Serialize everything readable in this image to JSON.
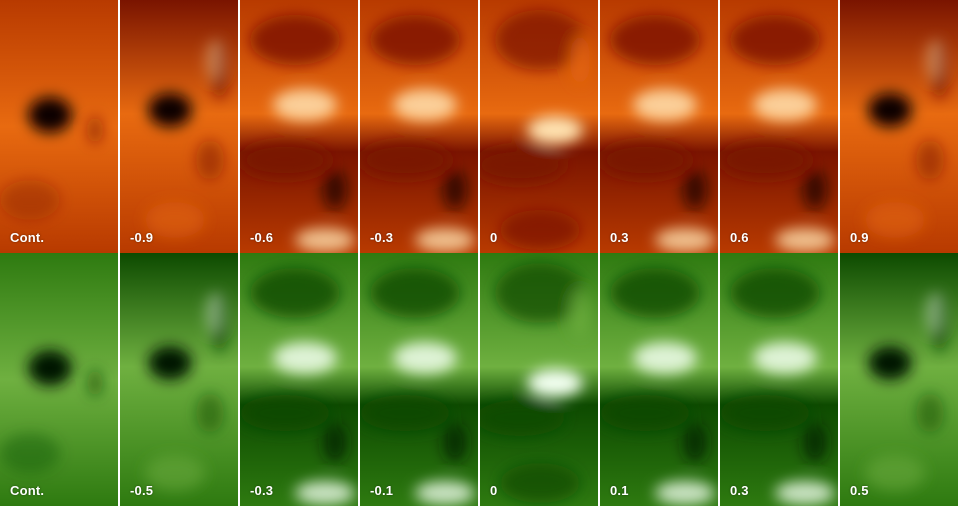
{
  "figure": {
    "rows": [
      {
        "id": "top",
        "palette": "red",
        "colors": {
          "dark": "#0c0200",
          "mid_low": "#7a1400",
          "mid": "#b83a00",
          "mid_high": "#e86a10",
          "bright": "#ffe2b0"
        },
        "panels": [
          {
            "label": "Cont.",
            "type": "continuum"
          },
          {
            "label": "-0.9",
            "type": "spot"
          },
          {
            "label": "-0.6",
            "type": "band"
          },
          {
            "label": "-0.3",
            "type": "band"
          },
          {
            "label": "0",
            "type": "core"
          },
          {
            "label": "0.3",
            "type": "band"
          },
          {
            "label": "0.6",
            "type": "band"
          },
          {
            "label": "0.9",
            "type": "spot"
          }
        ]
      },
      {
        "id": "bottom",
        "palette": "green",
        "colors": {
          "dark": "#001800",
          "mid_low": "#0d4a00",
          "mid": "#2e7a10",
          "mid_high": "#6fb040",
          "bright": "#f2fff0"
        },
        "panels": [
          {
            "label": "Cont.",
            "type": "continuum"
          },
          {
            "label": "-0.5",
            "type": "spot"
          },
          {
            "label": "-0.3",
            "type": "band"
          },
          {
            "label": "-0.1",
            "type": "band"
          },
          {
            "label": "0",
            "type": "core"
          },
          {
            "label": "0.1",
            "type": "band"
          },
          {
            "label": "0.3",
            "type": "band"
          },
          {
            "label": "0.5",
            "type": "spot"
          }
        ]
      }
    ]
  }
}
